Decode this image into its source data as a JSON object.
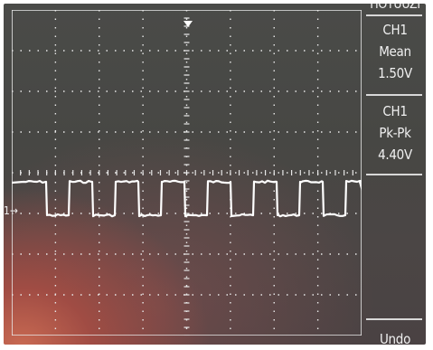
{
  "side_panel": {
    "top_label": "HOTUUZI",
    "measure1": {
      "channel": "CH1",
      "name": "Mean",
      "value": "1.50V"
    },
    "measure2": {
      "channel": "CH1",
      "name": "Pk-Pk",
      "value": "4.40V"
    },
    "bottom_button": "Undo"
  },
  "channel_marker": "1→",
  "colors": {
    "trace": "#ffffff",
    "grid": "#e8e8e8",
    "panel_text": "#f0f0f0"
  }
}
